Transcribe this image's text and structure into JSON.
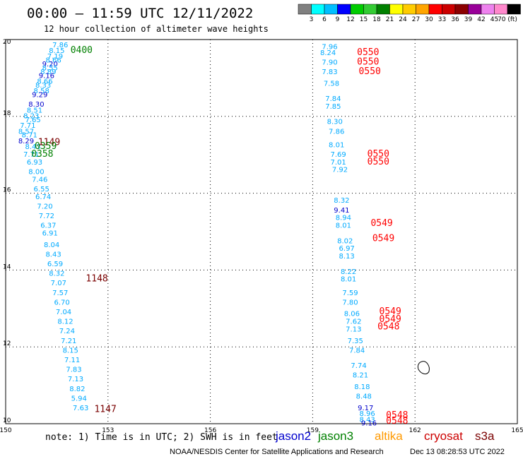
{
  "header": {
    "title": "00:00 – 11:59 UTC 12/11/2022",
    "subtitle": "12 hour collection of altimeter wave heights"
  },
  "colorbar": {
    "colors": [
      "#808080",
      "#00ffff",
      "#00bfff",
      "#0000ff",
      "#00cc00",
      "#33cc33",
      "#008000",
      "#ffff00",
      "#ffcc00",
      "#ffa500",
      "#ff0000",
      "#cc0000",
      "#8b0000",
      "#990099",
      "#ee82ee",
      "#ff88cc",
      "#000000"
    ],
    "labels": [
      "3",
      "6",
      "9",
      "12",
      "15",
      "18",
      "21",
      "24",
      "27",
      "30",
      "33",
      "36",
      "39",
      "42",
      "45",
      "70 (ft)"
    ]
  },
  "footer": {
    "note": "note: 1) Time is in UTC; 2) SWH is in feet",
    "credit": "NOAA/NESDIS Center for Satellite Applications and Research",
    "timestamp": "Dec 13 08:28:53 UTC 2022"
  },
  "legend": {
    "items": [
      {
        "name": "jason2",
        "color": "#0000cc"
      },
      {
        "name": "jason3",
        "color": "#008000"
      },
      {
        "name": "altika",
        "color": "#ff9900"
      },
      {
        "name": "cryosat",
        "color": "#cc0000"
      },
      {
        "name": "s3a",
        "color": "#7a0000"
      }
    ]
  },
  "chart_data": {
    "type": "scatter",
    "xlim": [
      150,
      165
    ],
    "ylim": [
      10,
      20
    ],
    "x_ticks": [
      "150",
      "153",
      "156",
      "159",
      "162",
      "165"
    ],
    "y_ticks": [
      "20",
      "18",
      "16",
      "14",
      "12",
      "10"
    ],
    "grid": true,
    "points": [
      {
        "lon": 151.6,
        "lat": 19.8,
        "v": "7.86",
        "c": "#00aaff"
      },
      {
        "lon": 151.5,
        "lat": 19.65,
        "v": "8.15",
        "c": "#00aaff"
      },
      {
        "lon": 151.45,
        "lat": 19.5,
        "v": "7.19",
        "c": "#00aaff"
      },
      {
        "lon": 151.4,
        "lat": 19.4,
        "v": "8.66",
        "c": "#00aaff"
      },
      {
        "lon": 151.3,
        "lat": 19.3,
        "v": "9.20",
        "c": "#0000cc"
      },
      {
        "lon": 151.3,
        "lat": 19.2,
        "v": "8.55",
        "c": "#00aaff"
      },
      {
        "lon": 151.25,
        "lat": 19.1,
        "v": "8.89",
        "c": "#00aaff"
      },
      {
        "lon": 151.2,
        "lat": 19.0,
        "v": "9.16",
        "c": "#0000cc"
      },
      {
        "lon": 151.15,
        "lat": 18.85,
        "v": "8.66",
        "c": "#00aaff"
      },
      {
        "lon": 151.1,
        "lat": 18.75,
        "v": "8.33",
        "c": "#00aaff"
      },
      {
        "lon": 151.05,
        "lat": 18.6,
        "v": "8.58",
        "c": "#00aaff"
      },
      {
        "lon": 151.0,
        "lat": 18.5,
        "v": "9.29",
        "c": "#0000cc"
      },
      {
        "lon": 150.9,
        "lat": 18.25,
        "v": "8.30",
        "c": "#0000cc"
      },
      {
        "lon": 150.85,
        "lat": 18.1,
        "v": "8.51",
        "c": "#00aaff"
      },
      {
        "lon": 150.75,
        "lat": 17.95,
        "v": "8.23",
        "c": "#00aaff"
      },
      {
        "lon": 150.8,
        "lat": 17.85,
        "v": "7.65",
        "c": "#00aaff"
      },
      {
        "lon": 150.65,
        "lat": 17.7,
        "v": "7.71",
        "c": "#00aaff"
      },
      {
        "lon": 150.6,
        "lat": 17.55,
        "v": "8.57",
        "c": "#00aaff"
      },
      {
        "lon": 150.7,
        "lat": 17.45,
        "v": "8.71",
        "c": "#00aaff"
      },
      {
        "lon": 150.6,
        "lat": 17.3,
        "v": "8.29",
        "c": "#0000cc"
      },
      {
        "lon": 150.8,
        "lat": 17.15,
        "v": "8.43",
        "c": "#00aaff"
      },
      {
        "lon": 150.75,
        "lat": 16.95,
        "v": "7.71",
        "c": "#00aaff"
      },
      {
        "lon": 150.85,
        "lat": 16.75,
        "v": "6.93",
        "c": "#00aaff"
      },
      {
        "lon": 150.9,
        "lat": 16.5,
        "v": "8.00",
        "c": "#00aaff"
      },
      {
        "lon": 151.0,
        "lat": 16.3,
        "v": "7.46",
        "c": "#00aaff"
      },
      {
        "lon": 151.05,
        "lat": 16.05,
        "v": "6.55",
        "c": "#00aaff"
      },
      {
        "lon": 151.1,
        "lat": 15.85,
        "v": "6.74",
        "c": "#00aaff"
      },
      {
        "lon": 151.15,
        "lat": 15.6,
        "v": "7.20",
        "c": "#00aaff"
      },
      {
        "lon": 151.2,
        "lat": 15.35,
        "v": "7.72",
        "c": "#00aaff"
      },
      {
        "lon": 151.25,
        "lat": 15.1,
        "v": "6.37",
        "c": "#00aaff"
      },
      {
        "lon": 151.3,
        "lat": 14.9,
        "v": "6.91",
        "c": "#00aaff"
      },
      {
        "lon": 151.35,
        "lat": 14.6,
        "v": "8.04",
        "c": "#00aaff"
      },
      {
        "lon": 151.4,
        "lat": 14.35,
        "v": "8.43",
        "c": "#00aaff"
      },
      {
        "lon": 151.45,
        "lat": 14.1,
        "v": "6.59",
        "c": "#00aaff"
      },
      {
        "lon": 151.5,
        "lat": 13.85,
        "v": "8.32",
        "c": "#00aaff"
      },
      {
        "lon": 151.55,
        "lat": 13.6,
        "v": "7.07",
        "c": "#00aaff"
      },
      {
        "lon": 151.6,
        "lat": 13.35,
        "v": "7.57",
        "c": "#00aaff"
      },
      {
        "lon": 151.65,
        "lat": 13.1,
        "v": "6.70",
        "c": "#00aaff"
      },
      {
        "lon": 151.7,
        "lat": 12.85,
        "v": "7.04",
        "c": "#00aaff"
      },
      {
        "lon": 151.75,
        "lat": 12.6,
        "v": "8.12",
        "c": "#00aaff"
      },
      {
        "lon": 151.8,
        "lat": 12.35,
        "v": "7.24",
        "c": "#00aaff"
      },
      {
        "lon": 151.85,
        "lat": 12.1,
        "v": "7.21",
        "c": "#00aaff"
      },
      {
        "lon": 151.9,
        "lat": 11.85,
        "v": "8.15",
        "c": "#00aaff"
      },
      {
        "lon": 151.95,
        "lat": 11.6,
        "v": "7.11",
        "c": "#00aaff"
      },
      {
        "lon": 152.0,
        "lat": 11.35,
        "v": "7.83",
        "c": "#00aaff"
      },
      {
        "lon": 152.05,
        "lat": 11.1,
        "v": "7.13",
        "c": "#00aaff"
      },
      {
        "lon": 152.1,
        "lat": 10.85,
        "v": "8.82",
        "c": "#00aaff"
      },
      {
        "lon": 152.15,
        "lat": 10.6,
        "v": "5.94",
        "c": "#00aaff"
      },
      {
        "lon": 152.2,
        "lat": 10.35,
        "v": "7.63",
        "c": "#00aaff"
      },
      {
        "lon": 159.5,
        "lat": 19.75,
        "v": "7.96",
        "c": "#00aaff"
      },
      {
        "lon": 159.45,
        "lat": 19.6,
        "v": "8.24",
        "c": "#00aaff"
      },
      {
        "lon": 159.5,
        "lat": 19.35,
        "v": "7.90",
        "c": "#00aaff"
      },
      {
        "lon": 159.5,
        "lat": 19.1,
        "v": "7.83",
        "c": "#00aaff"
      },
      {
        "lon": 159.55,
        "lat": 18.8,
        "v": "7.58",
        "c": "#00aaff"
      },
      {
        "lon": 159.6,
        "lat": 18.4,
        "v": "7.84",
        "c": "#00aaff"
      },
      {
        "lon": 159.6,
        "lat": 18.2,
        "v": "7.85",
        "c": "#00aaff"
      },
      {
        "lon": 159.65,
        "lat": 17.8,
        "v": "8.30",
        "c": "#00aaff"
      },
      {
        "lon": 159.7,
        "lat": 17.55,
        "v": "7.86",
        "c": "#00aaff"
      },
      {
        "lon": 159.7,
        "lat": 17.2,
        "v": "8.01",
        "c": "#00aaff"
      },
      {
        "lon": 159.75,
        "lat": 16.95,
        "v": "7.69",
        "c": "#00aaff"
      },
      {
        "lon": 159.75,
        "lat": 16.75,
        "v": "7.01",
        "c": "#00aaff"
      },
      {
        "lon": 159.8,
        "lat": 16.55,
        "v": "7.92",
        "c": "#00aaff"
      },
      {
        "lon": 159.85,
        "lat": 15.75,
        "v": "8.32",
        "c": "#00aaff"
      },
      {
        "lon": 159.85,
        "lat": 15.5,
        "v": "9.41",
        "c": "#0000cc"
      },
      {
        "lon": 159.9,
        "lat": 15.3,
        "v": "8.94",
        "c": "#00aaff"
      },
      {
        "lon": 159.9,
        "lat": 15.1,
        "v": "8.01",
        "c": "#00aaff"
      },
      {
        "lon": 159.95,
        "lat": 14.7,
        "v": "8.02",
        "c": "#00aaff"
      },
      {
        "lon": 160.0,
        "lat": 14.5,
        "v": "6.97",
        "c": "#00aaff"
      },
      {
        "lon": 160.0,
        "lat": 14.3,
        "v": "8.13",
        "c": "#00aaff"
      },
      {
        "lon": 160.05,
        "lat": 13.9,
        "v": "8.22",
        "c": "#00aaff"
      },
      {
        "lon": 160.05,
        "lat": 13.7,
        "v": "8.01",
        "c": "#00aaff"
      },
      {
        "lon": 160.1,
        "lat": 13.35,
        "v": "7.59",
        "c": "#00aaff"
      },
      {
        "lon": 160.1,
        "lat": 13.1,
        "v": "7.80",
        "c": "#00aaff"
      },
      {
        "lon": 160.15,
        "lat": 12.8,
        "v": "8.06",
        "c": "#00aaff"
      },
      {
        "lon": 160.2,
        "lat": 12.6,
        "v": "7.62",
        "c": "#00aaff"
      },
      {
        "lon": 160.2,
        "lat": 12.4,
        "v": "7.13",
        "c": "#00aaff"
      },
      {
        "lon": 160.25,
        "lat": 12.1,
        "v": "7.35",
        "c": "#00aaff"
      },
      {
        "lon": 160.3,
        "lat": 11.85,
        "v": "7.84",
        "c": "#00aaff"
      },
      {
        "lon": 160.35,
        "lat": 11.45,
        "v": "7.74",
        "c": "#00aaff"
      },
      {
        "lon": 160.4,
        "lat": 11.2,
        "v": "8.21",
        "c": "#00aaff"
      },
      {
        "lon": 160.45,
        "lat": 10.9,
        "v": "8.18",
        "c": "#00aaff"
      },
      {
        "lon": 160.5,
        "lat": 10.65,
        "v": "8.48",
        "c": "#00aaff"
      },
      {
        "lon": 160.55,
        "lat": 10.35,
        "v": "9.17",
        "c": "#0000cc"
      },
      {
        "lon": 160.6,
        "lat": 10.2,
        "v": "8.96",
        "c": "#00aaff"
      },
      {
        "lon": 160.6,
        "lat": 10.05,
        "v": "8.43",
        "c": "#00aaff"
      },
      {
        "lon": 160.65,
        "lat": 9.95,
        "v": "9.16",
        "c": "#0000cc"
      }
    ],
    "time_labels": [
      {
        "lon": 151.9,
        "lat": 19.65,
        "t": "0400",
        "c": "#008000"
      },
      {
        "lon": 150.95,
        "lat": 17.25,
        "t": "1149",
        "c": "#7a0000"
      },
      {
        "lon": 150.85,
        "lat": 17.15,
        "t": "0359",
        "c": "#008000"
      },
      {
        "lon": 150.75,
        "lat": 16.95,
        "t": "0358",
        "c": "#008000"
      },
      {
        "lon": 152.35,
        "lat": 13.7,
        "t": "1148",
        "c": "#7a0000"
      },
      {
        "lon": 152.6,
        "lat": 10.3,
        "t": "1147",
        "c": "#7a0000"
      },
      {
        "lon": 160.3,
        "lat": 19.6,
        "t": "0550",
        "c": "#ff0000"
      },
      {
        "lon": 160.3,
        "lat": 19.35,
        "t": "0550",
        "c": "#ff0000"
      },
      {
        "lon": 160.35,
        "lat": 19.1,
        "t": "0550",
        "c": "#ff0000"
      },
      {
        "lon": 160.6,
        "lat": 16.95,
        "t": "0550",
        "c": "#ff0000"
      },
      {
        "lon": 160.6,
        "lat": 16.75,
        "t": "0550",
        "c": "#ff0000"
      },
      {
        "lon": 160.7,
        "lat": 15.15,
        "t": "0549",
        "c": "#ff0000"
      },
      {
        "lon": 160.75,
        "lat": 14.75,
        "t": "0549",
        "c": "#ff0000"
      },
      {
        "lon": 160.95,
        "lat": 12.85,
        "t": "0549",
        "c": "#ff0000"
      },
      {
        "lon": 160.95,
        "lat": 12.65,
        "t": "0549",
        "c": "#ff0000"
      },
      {
        "lon": 160.9,
        "lat": 12.45,
        "t": "0548",
        "c": "#ff0000"
      },
      {
        "lon": 161.15,
        "lat": 10.15,
        "t": "0548",
        "c": "#ff0000"
      },
      {
        "lon": 161.15,
        "lat": 10.0,
        "t": "0548",
        "c": "#ff0000"
      }
    ]
  }
}
